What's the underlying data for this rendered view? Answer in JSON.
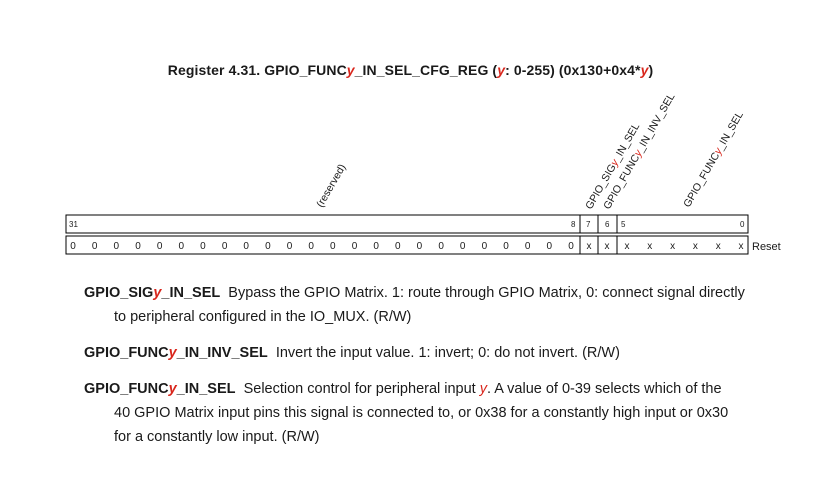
{
  "title": {
    "pre": "Register 4.31. GPIO_FUNC",
    "y1": "y",
    "mid": "_IN_SEL_CFG_REG (",
    "y2": "y",
    "range": ": 0-255) (0x130+0x4*",
    "y3": "y",
    "post": ")"
  },
  "register": {
    "reserved_label": "(reserved)",
    "field_labels": [
      {
        "parts": [
          "GPIO_SIG",
          "y",
          "_IN_SEL"
        ]
      },
      {
        "parts": [
          "GPIO_FUNC",
          "y",
          "_IN_INV_SEL"
        ]
      },
      {
        "parts": [
          "GPIO_FUNC",
          "y",
          "_IN_SEL"
        ]
      }
    ],
    "bit_numbers": [
      "31",
      "8",
      "7",
      "6",
      "5",
      "0"
    ],
    "reserved_reset_values": [
      "0",
      "0",
      "0",
      "0",
      "0",
      "0",
      "0",
      "0",
      "0",
      "0",
      "0",
      "0",
      "0",
      "0",
      "0",
      "0",
      "0",
      "0",
      "0",
      "0",
      "0",
      "0",
      "0",
      "0"
    ],
    "bit7_reset": "x",
    "bit6_reset": "x",
    "low_reset_values": [
      "x",
      "x",
      "x",
      "x",
      "x",
      "x"
    ],
    "reset_label": "Reset"
  },
  "fields": [
    {
      "name_parts": [
        "GPIO_SIG",
        "y",
        "_IN_SEL"
      ],
      "line1": "Bypass the GPIO Matrix. 1: route through GPIO Matrix, 0: connect signal directly",
      "line2": "to peripheral configured in the IO_MUX. (R/W)"
    },
    {
      "name_parts": [
        "GPIO_FUNC",
        "y",
        "_IN_INV_SEL"
      ],
      "line1": "Invert the input value. 1: invert; 0: do not invert. (R/W)"
    },
    {
      "name_parts": [
        "GPIO_FUNC",
        "y",
        "_IN_SEL"
      ],
      "line1_pre": "Selection control for peripheral input ",
      "line1_y": "y",
      "line1_post": ". A value of 0-39 selects which of the",
      "line2": "40 GPIO Matrix input pins this signal is connected to, or 0x38 for a constantly high input or 0x30",
      "line3": "for a constantly low input. (R/W)"
    }
  ],
  "colors": {
    "accent": "#d9261c",
    "text": "#1a1a1a",
    "line": "#000000"
  }
}
